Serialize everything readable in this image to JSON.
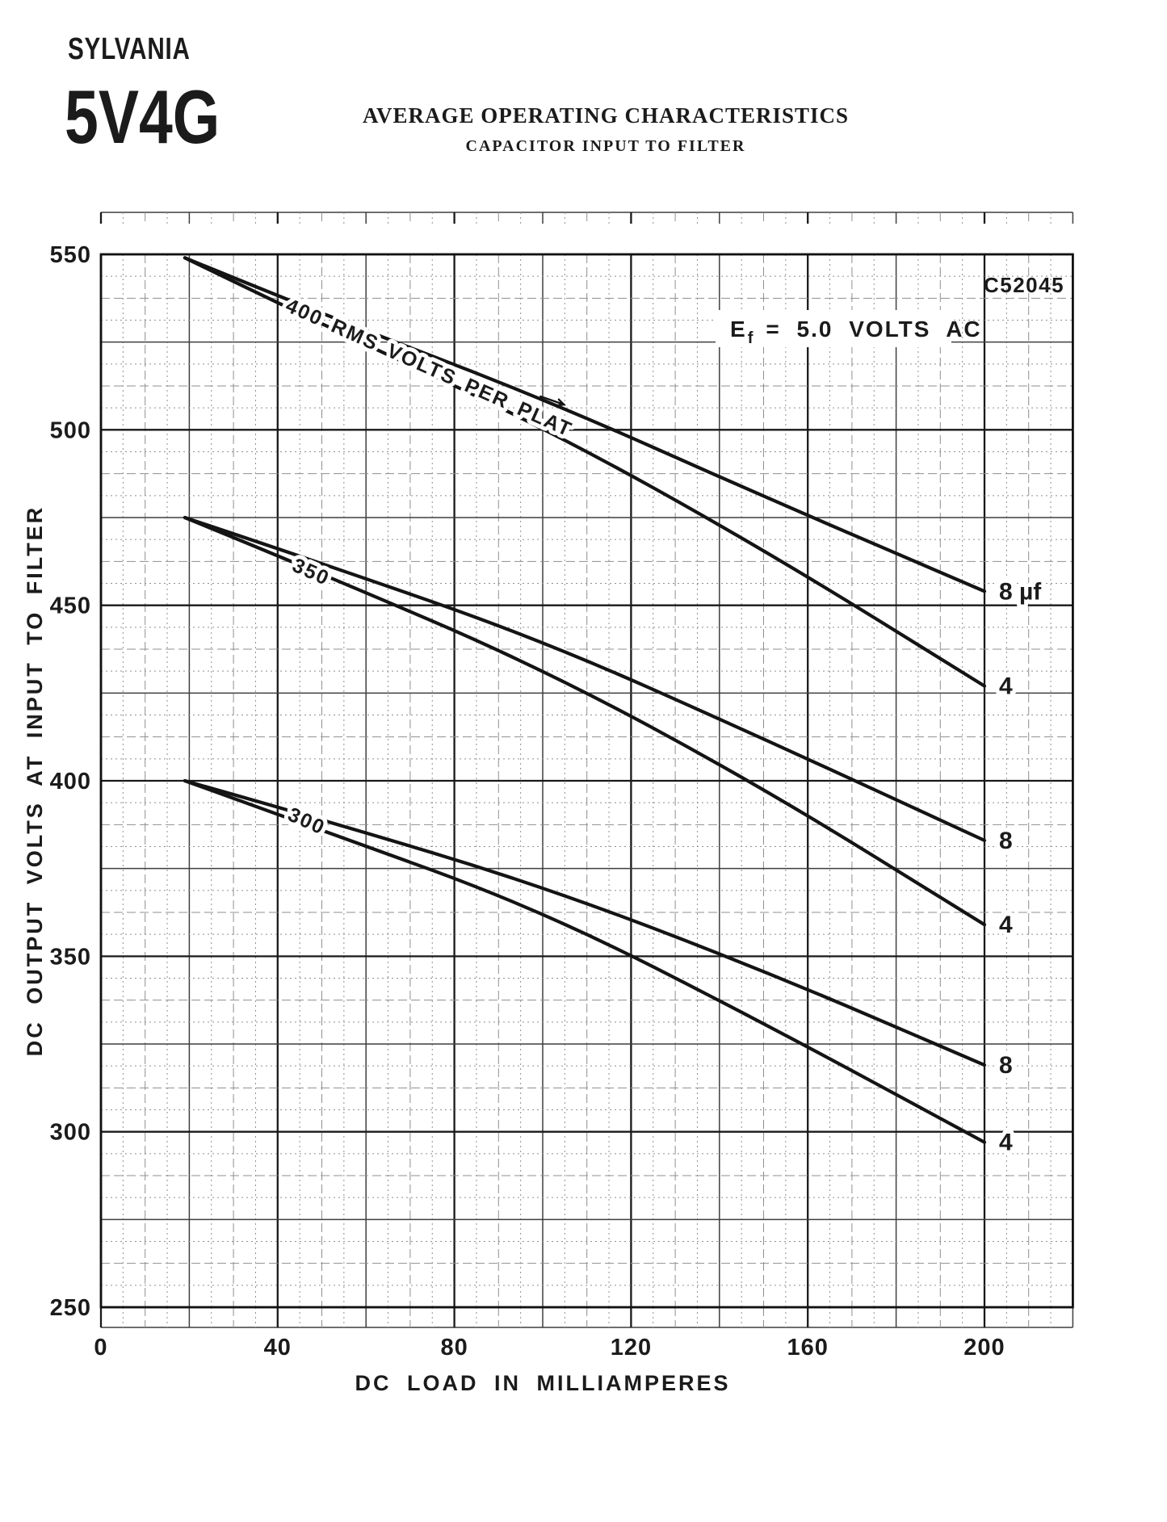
{
  "page": {
    "background": "#ffffff",
    "ink_color": "#1b1b1b"
  },
  "header": {
    "brand": "SYLVANIA",
    "tube_type": "5V4G",
    "title": "AVERAGE OPERATING CHARACTERISTICS",
    "subtitle": "CAPACITOR INPUT TO FILTER"
  },
  "chart_data": {
    "type": "line",
    "title": "Average operating characteristics, capacitor input to filter",
    "xlabel": "DC LOAD IN MILLIAMPERES",
    "ylabel": "DC OUTPUT VOLTS AT INPUT TO FILTER",
    "xlim": [
      0,
      220
    ],
    "ylim": [
      250,
      550
    ],
    "xticks": [
      0,
      40,
      80,
      120,
      160,
      200
    ],
    "yticks": [
      550,
      500,
      450,
      400,
      350,
      300,
      250
    ],
    "grid": "fine graph paper, heavy line every 4th cell, labeled line every 8th",
    "drawing_code": "C52045",
    "condition": {
      "symbol": "E",
      "subscript": "f",
      "value": "=  5.0  VOLTS  AC",
      "full_text": "Ef = 5.0 VOLTS AC"
    },
    "family_labels": [
      {
        "text": "400 RMS VOLTS PER PLAT",
        "ma": 41.5,
        "volts": 534,
        "rotate_deg": 24,
        "leader_arrow": {
          "from": [
            99.5,
            509.5
          ],
          "to": [
            104.8,
            507.2
          ]
        }
      },
      {
        "text": "350",
        "ma": 43,
        "volts": 460,
        "rotate_deg": 24
      },
      {
        "text": "300",
        "ma": 42,
        "volts": 389,
        "rotate_deg": 24
      }
    ],
    "series": [
      {
        "name": "400 V RMS per plate, 8 uF",
        "end_label": "8 µf",
        "points": [
          [
            19,
            549
          ],
          [
            50,
            533
          ],
          [
            100,
            509
          ],
          [
            150,
            481
          ],
          [
            200,
            454
          ]
        ]
      },
      {
        "name": "400 V RMS per plate, 4 uF",
        "end_label": "4",
        "points": [
          [
            19,
            549
          ],
          [
            50,
            530
          ],
          [
            100,
            501
          ],
          [
            150,
            466
          ],
          [
            200,
            427
          ]
        ]
      },
      {
        "name": "350 V RMS per plate, 8 uF",
        "end_label": "8",
        "points": [
          [
            19,
            475
          ],
          [
            50,
            462
          ],
          [
            100,
            440
          ],
          [
            150,
            412
          ],
          [
            200,
            383
          ]
        ]
      },
      {
        "name": "350 V RMS per plate, 4 uF",
        "end_label": "4",
        "points": [
          [
            19,
            475
          ],
          [
            50,
            459
          ],
          [
            100,
            432
          ],
          [
            150,
            398
          ],
          [
            200,
            359
          ]
        ]
      },
      {
        "name": "300 V RMS per plate, 8 uF",
        "end_label": "8",
        "points": [
          [
            19,
            400
          ],
          [
            50,
            389
          ],
          [
            100,
            370
          ],
          [
            150,
            346
          ],
          [
            200,
            319
          ]
        ]
      },
      {
        "name": "300 V RMS per plate, 4 uF",
        "end_label": "4",
        "points": [
          [
            19,
            400
          ],
          [
            50,
            386
          ],
          [
            100,
            363
          ],
          [
            150,
            331
          ],
          [
            200,
            297
          ]
        ]
      }
    ]
  }
}
